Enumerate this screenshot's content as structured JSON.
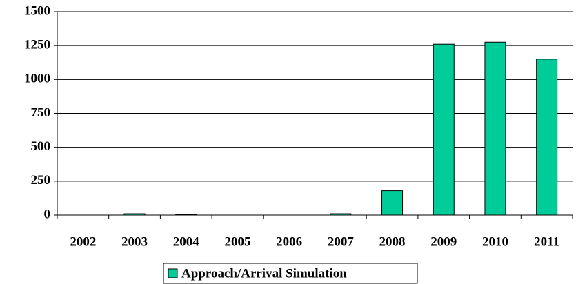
{
  "chart_data": {
    "type": "bar",
    "categories": [
      "2002",
      "2003",
      "2004",
      "2005",
      "2006",
      "2007",
      "2008",
      "2009",
      "2010",
      "2011"
    ],
    "series": [
      {
        "name": "Approach/Arrival Simulation",
        "color": "#00cc99",
        "values": [
          0,
          10,
          5,
          0,
          0,
          10,
          180,
          1260,
          1275,
          1150
        ]
      }
    ],
    "ylim": [
      0,
      1500
    ],
    "yticks": [
      0,
      250,
      500,
      750,
      1000,
      1250,
      1500
    ],
    "grid": true,
    "legend": "bottom"
  }
}
